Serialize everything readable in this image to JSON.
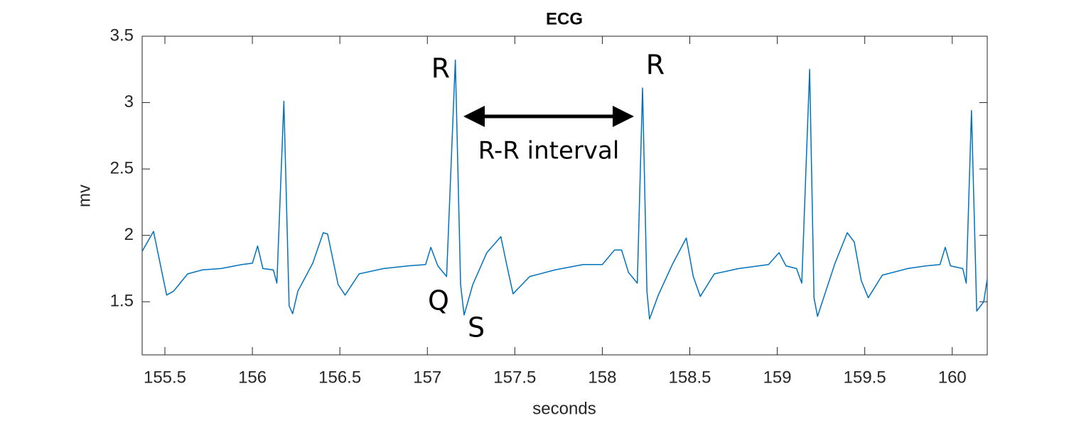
{
  "chart_data": {
    "type": "line",
    "title": "ECG",
    "x_label": "seconds",
    "y_label": "mv",
    "color": "#0072bd",
    "x": [
      155.37,
      155.435,
      155.51,
      155.55,
      155.63,
      155.715,
      155.82,
      155.94,
      156.0,
      156.03,
      156.06,
      156.12,
      156.14,
      156.18,
      156.21,
      156.23,
      156.26,
      156.345,
      156.405,
      156.43,
      156.49,
      156.53,
      156.61,
      156.75,
      156.89,
      156.99,
      157.02,
      157.06,
      157.11,
      157.16,
      157.19,
      157.21,
      157.26,
      157.34,
      157.42,
      157.46,
      157.49,
      157.585,
      157.73,
      157.89,
      158.0,
      158.07,
      158.11,
      158.15,
      158.2,
      158.23,
      158.255,
      158.27,
      158.32,
      158.4,
      158.48,
      158.52,
      158.56,
      158.64,
      158.78,
      158.95,
      159.01,
      159.05,
      159.11,
      159.14,
      159.185,
      159.21,
      159.23,
      159.27,
      159.33,
      159.4,
      159.44,
      159.48,
      159.52,
      159.6,
      159.745,
      159.85,
      159.93,
      159.96,
      159.99,
      160.06,
      160.08,
      160.11,
      160.14,
      160.18,
      160.2
    ],
    "values": [
      1.88,
      2.03,
      1.55,
      1.58,
      1.71,
      1.74,
      1.75,
      1.78,
      1.79,
      1.92,
      1.75,
      1.74,
      1.64,
      3.01,
      1.47,
      1.41,
      1.58,
      1.79,
      2.02,
      2.01,
      1.63,
      1.55,
      1.71,
      1.75,
      1.77,
      1.78,
      1.91,
      1.77,
      1.69,
      3.32,
      1.63,
      1.4,
      1.63,
      1.87,
      1.99,
      1.74,
      1.56,
      1.69,
      1.74,
      1.78,
      1.78,
      1.89,
      1.89,
      1.72,
      1.64,
      3.11,
      1.58,
      1.37,
      1.55,
      1.78,
      1.98,
      1.69,
      1.54,
      1.71,
      1.75,
      1.78,
      1.87,
      1.77,
      1.75,
      1.64,
      3.25,
      1.53,
      1.39,
      1.55,
      1.79,
      2.02,
      1.95,
      1.66,
      1.53,
      1.7,
      1.75,
      1.77,
      1.78,
      1.91,
      1.77,
      1.75,
      1.64,
      2.94,
      1.43,
      1.5,
      1.67
    ],
    "xlim": [
      155.37,
      160.2
    ],
    "ylim": [
      1.1,
      3.5
    ],
    "xticks": [
      155.5,
      156,
      156.5,
      157,
      157.5,
      158,
      158.5,
      159,
      159.5,
      160
    ],
    "yticks": [
      1.5,
      2,
      2.5,
      3,
      3.5
    ],
    "annotations": [
      "R",
      "R",
      "Q",
      "S",
      "R-R interval"
    ]
  }
}
